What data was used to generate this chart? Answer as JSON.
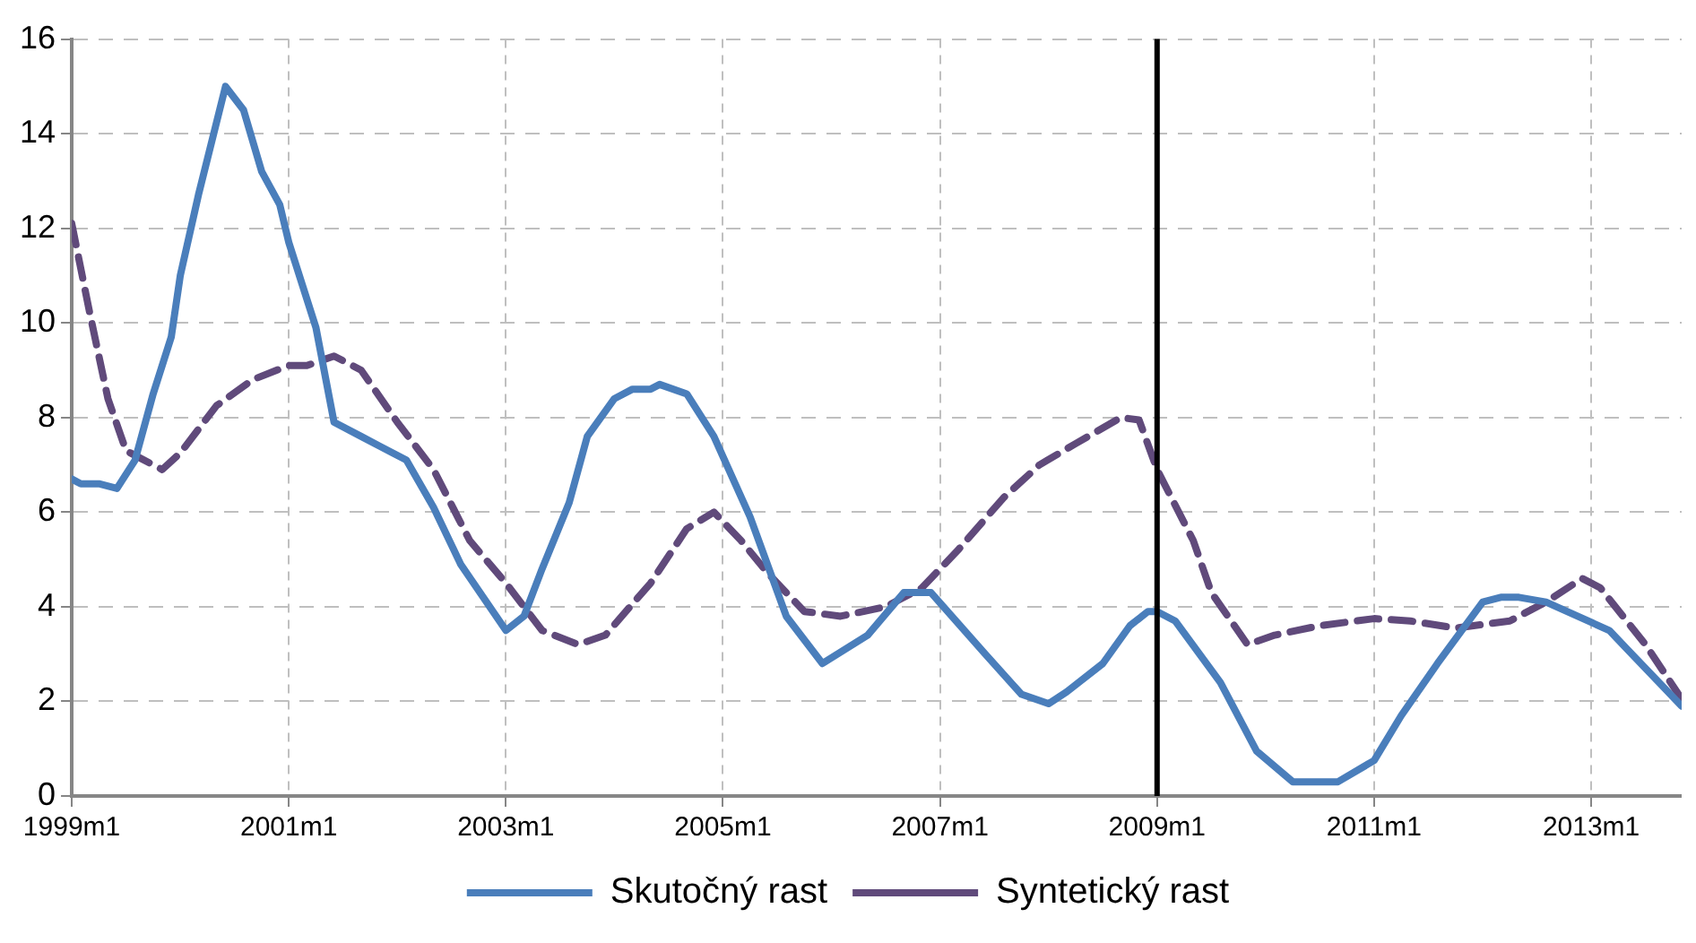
{
  "chart_data": {
    "type": "line",
    "series": [
      {
        "name": "Skutočný rast",
        "color": "#4a7ebb",
        "line_style": "solid",
        "x": [
          "1999-01",
          "1999-02",
          "1999-04",
          "1999-06",
          "1999-08",
          "1999-10",
          "1999-12",
          "2000-01",
          "2000-03",
          "2000-06",
          "2000-08",
          "2000-10",
          "2000-12",
          "2001-01",
          "2001-04",
          "2001-06",
          "2001-09",
          "2001-11",
          "2002-02",
          "2002-05",
          "2002-08",
          "2003-01",
          "2003-03",
          "2003-05",
          "2003-08",
          "2003-10",
          "2004-01",
          "2004-03",
          "2004-05",
          "2004-06",
          "2004-09",
          "2004-12",
          "2005-04",
          "2005-08",
          "2005-12",
          "2006-05",
          "2006-09",
          "2006-12",
          "2007-06",
          "2007-10",
          "2008-01",
          "2008-03",
          "2008-07",
          "2008-10",
          "2008-12",
          "2009-01",
          "2009-03",
          "2009-08",
          "2009-12",
          "2010-04",
          "2010-09",
          "2011-01",
          "2011-04",
          "2011-08",
          "2012-01",
          "2012-03",
          "2012-05",
          "2012-08",
          "2013-03",
          "2013-05",
          "2013-11"
        ],
        "values": [
          6.7,
          6.6,
          6.6,
          6.5,
          7.1,
          8.5,
          9.7,
          11,
          12.7,
          15,
          14.5,
          13.2,
          12.5,
          11.7,
          9.9,
          7.9,
          7.6,
          7.4,
          7.1,
          6.1,
          4.9,
          3.5,
          3.8,
          4.8,
          6.2,
          7.6,
          8.4,
          8.6,
          8.6,
          8.7,
          8.5,
          7.6,
          5.9,
          3.8,
          2.8,
          3.4,
          4.3,
          4.3,
          3,
          2.15,
          1.95,
          2.2,
          2.8,
          3.6,
          3.9,
          3.9,
          3.7,
          2.4,
          0.95,
          0.3,
          0.3,
          0.75,
          1.7,
          2.8,
          4.1,
          4.2,
          4.2,
          4.1,
          3.5,
          3.1,
          1.9
        ]
      },
      {
        "name": "Syntetický rast",
        "color": "#604a7b",
        "line_style": "dashed",
        "x": [
          "1999-01",
          "1999-03",
          "1999-05",
          "1999-07",
          "1999-11",
          "2000-01",
          "2000-05",
          "2000-09",
          "2001-01",
          "2001-03",
          "2001-06",
          "2001-09",
          "2002-01",
          "2002-05",
          "2002-09",
          "2003-01",
          "2003-05",
          "2003-09",
          "2003-12",
          "2004-05",
          "2004-09",
          "2004-12",
          "2005-03",
          "2005-06",
          "2005-10",
          "2006-02",
          "2006-07",
          "2006-11",
          "2007-03",
          "2007-08",
          "2007-12",
          "2008-04",
          "2008-09",
          "2008-11",
          "2009-01",
          "2009-05",
          "2009-07",
          "2009-11",
          "2010-02",
          "2010-07",
          "2011-01",
          "2011-05",
          "2011-10",
          "2012-04",
          "2012-08",
          "2012-12",
          "2013-02",
          "2013-07",
          "2013-11"
        ],
        "values": [
          12.1,
          10.2,
          8.4,
          7.3,
          6.9,
          7.25,
          8.25,
          8.8,
          9.1,
          9.1,
          9.3,
          9,
          7.9,
          6.9,
          5.4,
          4.5,
          3.5,
          3.2,
          3.4,
          4.5,
          5.65,
          6,
          5.4,
          4.7,
          3.9,
          3.8,
          4,
          4.4,
          5.2,
          6.3,
          7,
          7.45,
          8,
          7.95,
          6.9,
          5.4,
          4.3,
          3.2,
          3.4,
          3.6,
          3.75,
          3.7,
          3.55,
          3.7,
          4.1,
          4.6,
          4.4,
          3.2,
          2.05
        ]
      }
    ],
    "xlim": [
      "1999-01",
      "2013-11"
    ],
    "xticks": [
      {
        "value": "1999-01",
        "label": "1999m1"
      },
      {
        "value": "2001-01",
        "label": "2001m1"
      },
      {
        "value": "2003-01",
        "label": "2003m1"
      },
      {
        "value": "2005-01",
        "label": "2005m1"
      },
      {
        "value": "2007-01",
        "label": "2007m1"
      },
      {
        "value": "2009-01",
        "label": "2009m1"
      },
      {
        "value": "2011-01",
        "label": "2011m1"
      },
      {
        "value": "2013-01",
        "label": "2013m1"
      }
    ],
    "ylim": [
      0,
      16
    ],
    "yticks": [
      0,
      2,
      4,
      6,
      8,
      10,
      12,
      14,
      16
    ],
    "ref_lines": [
      {
        "axis": "x",
        "value": "2009-01",
        "color": "#000000"
      }
    ],
    "grid": true,
    "legend": "bottom",
    "marker": "none"
  }
}
